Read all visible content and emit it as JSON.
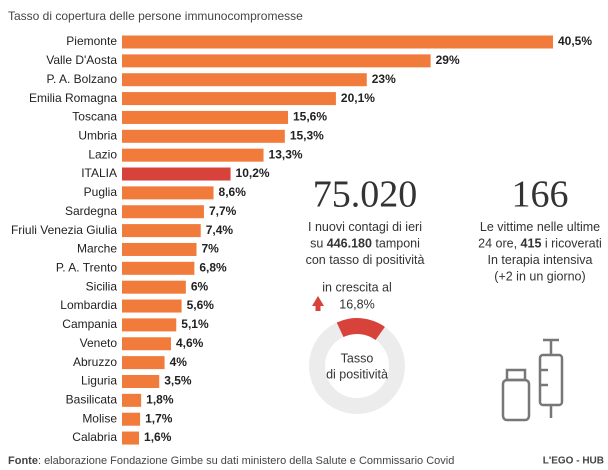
{
  "chart_data": {
    "type": "bar",
    "title": "Tasso di copertura delle persone immunocompromesse",
    "categories": [
      "Piemonte",
      "Valle D'Aosta",
      "P. A. Bolzano",
      "Emilia Romagna",
      "Toscana",
      "Umbria",
      "Lazio",
      "ITALIA",
      "Puglia",
      "Sardegna",
      "Friuli Venezia Giulia",
      "Marche",
      "P. A. Trento",
      "Sicilia",
      "Lombardia",
      "Campania",
      "Veneto",
      "Abruzzo",
      "Liguria",
      "Basilicata",
      "Molise",
      "Calabria"
    ],
    "values": [
      40.5,
      29,
      23,
      20.1,
      15.6,
      15.3,
      13.3,
      10.2,
      8.6,
      7.7,
      7.4,
      7,
      6.8,
      6,
      5.6,
      5.1,
      4.6,
      4,
      3.5,
      1.8,
      1.7,
      1.6
    ],
    "value_labels": [
      "40,5%",
      "29%",
      "23%",
      "20,1%",
      "15,6%",
      "15,3%",
      "13,3%",
      "10,2%",
      "8,6%",
      "7,7%",
      "7,4%",
      "7%",
      "6,8%",
      "6%",
      "5,6%",
      "5,1%",
      "4,6%",
      "4%",
      "3,5%",
      "1,8%",
      "1,7%",
      "1,6%"
    ],
    "colors": [
      "#f07b3a",
      "#f07b3a",
      "#f07b3a",
      "#f07b3a",
      "#f07b3a",
      "#f07b3a",
      "#f07b3a",
      "#d7423a",
      "#f07b3a",
      "#f07b3a",
      "#f07b3a",
      "#f07b3a",
      "#f07b3a",
      "#f07b3a",
      "#f07b3a",
      "#f07b3a",
      "#f07b3a",
      "#f07b3a",
      "#f07b3a",
      "#f07b3a",
      "#f07b3a",
      "#f07b3a"
    ]
  },
  "stats": [
    {
      "value": "75.020",
      "lines": [
        [
          {
            "t": "I nuovi contagi di ieri"
          }
        ],
        [
          {
            "t": "su "
          },
          {
            "t": "446.180",
            "b": true
          },
          {
            "t": " tamponi"
          }
        ],
        [
          {
            "t": "con tasso di positività"
          }
        ]
      ]
    },
    {
      "value": "166",
      "lines": [
        [
          {
            "t": "Le vittime nelle ultime"
          }
        ],
        [
          {
            "t": "24 ore, "
          },
          {
            "t": "415",
            "b": true
          },
          {
            "t": " i ricoverati"
          }
        ],
        [
          {
            "t": "In terapia intensiva"
          }
        ],
        [
          {
            "t": "(+2 in un giorno)"
          }
        ]
      ]
    }
  ],
  "gauge": {
    "caption": "in crescita al",
    "value": 16.8,
    "value_label": "16,8%",
    "label": [
      "Tasso",
      "di positività"
    ],
    "color": "#d7423a"
  },
  "footer": {
    "source_label": "Fonte",
    "source": ": elaborazione Fondazione Gimbe su dati ministero della Salute e Commissario Covid",
    "credit": "L'EGO - HUB"
  }
}
